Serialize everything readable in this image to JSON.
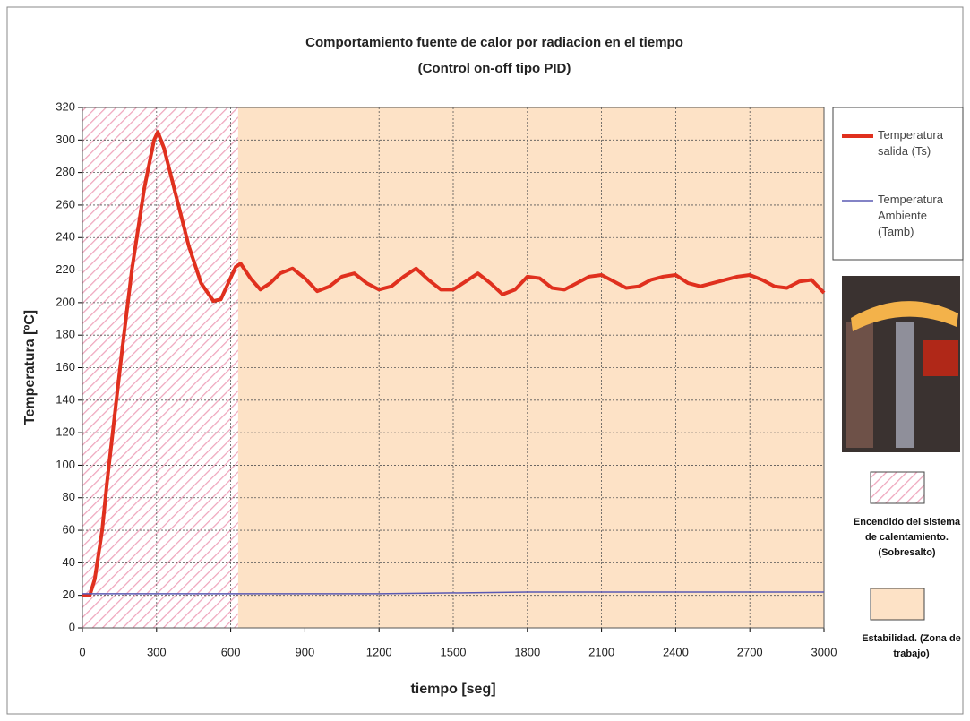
{
  "chart_data": {
    "type": "line",
    "title": "Comportamiento fuente de calor por radiacion en el tiempo",
    "subtitle": "(Control on-off tipo PID)",
    "x_label": "tiempo [seg]",
    "y_label": "Temperatura [ºC]",
    "xlim": [
      0,
      3000
    ],
    "xticks": [
      0,
      300,
      600,
      900,
      1200,
      1500,
      1800,
      2100,
      2400,
      2700,
      3000
    ],
    "ylim": [
      0,
      320
    ],
    "yticks": [
      0,
      20,
      40,
      60,
      80,
      100,
      120,
      140,
      160,
      180,
      200,
      220,
      240,
      260,
      280,
      300,
      320
    ],
    "grid": true,
    "legend": "right",
    "regions": [
      {
        "label": "Encendido del sistema de calentamiento. (Sobresalto)",
        "xrange": [
          0,
          630
        ],
        "color": "#f4b6c8",
        "pattern": "hatch"
      },
      {
        "label": "Estabilidad. (Zona de trabajo)",
        "xrange": [
          630,
          3000
        ],
        "color": "#fde2c6",
        "pattern": "solid"
      }
    ],
    "series": [
      {
        "name": "Temperatura salida (Ts)",
        "color": "#e0301e",
        "width": 4,
        "x": [
          0,
          30,
          50,
          80,
          100,
          130,
          160,
          200,
          250,
          290,
          305,
          330,
          380,
          430,
          480,
          530,
          560,
          590,
          620,
          640,
          680,
          720,
          760,
          800,
          850,
          900,
          950,
          1000,
          1050,
          1100,
          1150,
          1200,
          1250,
          1300,
          1350,
          1400,
          1450,
          1500,
          1550,
          1600,
          1650,
          1700,
          1750,
          1800,
          1850,
          1900,
          1950,
          2000,
          2050,
          2100,
          2150,
          2200,
          2250,
          2300,
          2350,
          2400,
          2450,
          2500,
          2550,
          2600,
          2650,
          2700,
          2750,
          2800,
          2850,
          2900,
          2950,
          3000
        ],
        "values": [
          20,
          20,
          30,
          60,
          90,
          130,
          170,
          220,
          270,
          300,
          305,
          295,
          265,
          235,
          212,
          201,
          202,
          212,
          222,
          224,
          215,
          208,
          212,
          218,
          221,
          215,
          207,
          210,
          216,
          218,
          212,
          208,
          210,
          216,
          221,
          214,
          208,
          208,
          213,
          218,
          212,
          205,
          208,
          216,
          215,
          209,
          208,
          212,
          216,
          217,
          213,
          209,
          210,
          214,
          216,
          217,
          212,
          210,
          212,
          214,
          216,
          217,
          214,
          210,
          209,
          213,
          214,
          206
        ]
      },
      {
        "name": "Temperatura Ambiente (Tamb)",
        "color": "#5a5ab4",
        "width": 1.5,
        "x": [
          0,
          600,
          1200,
          1800,
          2400,
          3000
        ],
        "values": [
          21,
          21,
          21,
          22,
          22,
          22
        ]
      }
    ]
  }
}
